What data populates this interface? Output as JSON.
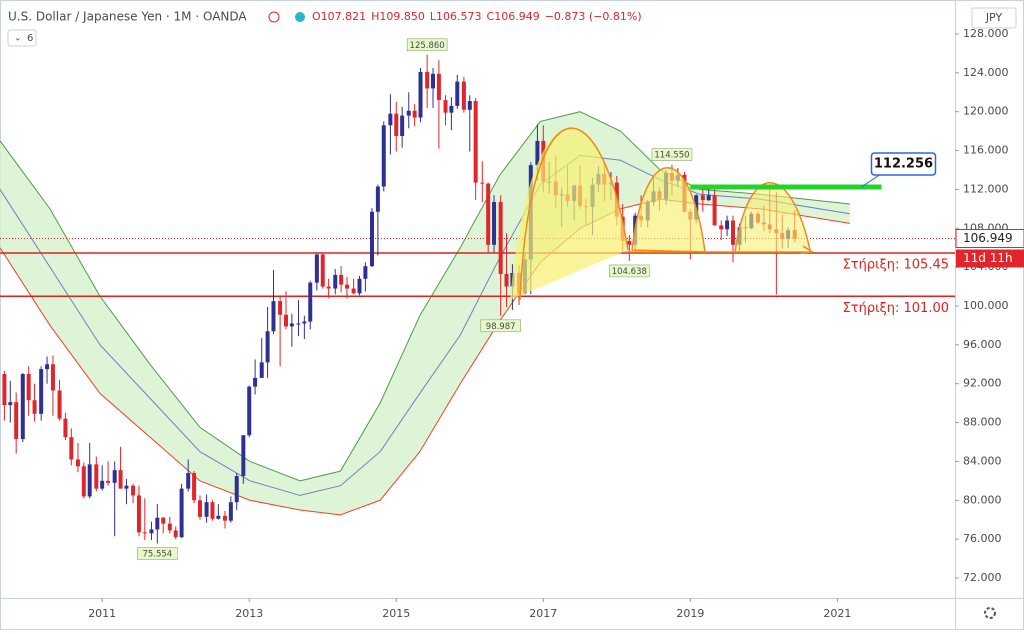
{
  "header": {
    "symbol": "U.S. Dollar / Japanese Yen · 1M · OANDA",
    "readout": [
      "O107.821",
      "H109.850",
      "L106.573",
      "C106.949",
      "−0.873 (−0.81%)"
    ],
    "indicator_count": "6",
    "currency": "JPY"
  },
  "chart_data": {
    "type": "candlestick",
    "up_color": "#2e3192",
    "down_color": "#e0262a",
    "xlim": [
      2009.61,
      2022.6
    ],
    "xticks": [
      2011,
      2013,
      2015,
      2017,
      2019,
      2021
    ],
    "ylim": [
      69.94,
      131.5
    ],
    "yticks": [
      {
        "value": 72,
        "label": "72.000"
      },
      {
        "value": 76,
        "label": "76.000"
      },
      {
        "value": 80,
        "label": "80.000"
      },
      {
        "value": 84,
        "label": "84.000"
      },
      {
        "value": 88,
        "label": "88.000"
      },
      {
        "value": 92,
        "label": "92.000"
      },
      {
        "value": 96,
        "label": "96.000"
      },
      {
        "value": 100,
        "label": "100.000"
      },
      {
        "value": 104,
        "label": "104.000"
      },
      {
        "value": 108,
        "label": "108.000"
      },
      {
        "value": 112,
        "label": "112.000"
      },
      {
        "value": 116,
        "label": "116.000"
      },
      {
        "value": 120,
        "label": "120.000"
      },
      {
        "value": 124,
        "label": "124.000"
      },
      {
        "value": 128,
        "label": "128.000"
      }
    ],
    "x": [
      2009.67,
      2009.75,
      2009.83,
      2009.92,
      2010.0,
      2010.08,
      2010.17,
      2010.25,
      2010.33,
      2010.42,
      2010.5,
      2010.58,
      2010.67,
      2010.75,
      2010.83,
      2010.92,
      2011.0,
      2011.08,
      2011.17,
      2011.25,
      2011.33,
      2011.42,
      2011.5,
      2011.58,
      2011.67,
      2011.75,
      2011.83,
      2011.92,
      2012.0,
      2012.08,
      2012.17,
      2012.25,
      2012.33,
      2012.42,
      2012.5,
      2012.58,
      2012.67,
      2012.75,
      2012.83,
      2012.92,
      2013.0,
      2013.08,
      2013.17,
      2013.25,
      2013.33,
      2013.42,
      2013.5,
      2013.58,
      2013.67,
      2013.75,
      2013.83,
      2013.92,
      2014.0,
      2014.08,
      2014.17,
      2014.25,
      2014.33,
      2014.42,
      2014.5,
      2014.58,
      2014.67,
      2014.75,
      2014.83,
      2014.92,
      2015.0,
      2015.08,
      2015.17,
      2015.25,
      2015.33,
      2015.42,
      2015.5,
      2015.58,
      2015.67,
      2015.75,
      2015.83,
      2015.92,
      2016.0,
      2016.08,
      2016.17,
      2016.25,
      2016.33,
      2016.42,
      2016.5,
      2016.58,
      2016.67,
      2016.75,
      2016.83,
      2016.92,
      2017.0,
      2017.08,
      2017.17,
      2017.25,
      2017.33,
      2017.42,
      2017.5,
      2017.58,
      2017.67,
      2017.75,
      2017.83,
      2017.92,
      2018.0,
      2018.08,
      2018.17,
      2018.25,
      2018.33,
      2018.42,
      2018.5,
      2018.58,
      2018.67,
      2018.75,
      2018.83,
      2018.92,
      2019.0,
      2019.08,
      2019.17,
      2019.25,
      2019.33,
      2019.42,
      2019.5,
      2019.58,
      2019.67,
      2019.75,
      2019.83,
      2019.92,
      2020.0,
      2020.08,
      2020.17,
      2020.25,
      2020.33,
      2020.42
    ],
    "ohlc": [
      [
        93.0,
        93.3,
        88.2,
        89.8
      ],
      [
        89.8,
        92.3,
        88.0,
        90.1
      ],
      [
        90.1,
        91.1,
        84.8,
        86.3
      ],
      [
        86.3,
        93.1,
        86.0,
        93.0
      ],
      [
        93.0,
        93.8,
        88.7,
        90.3
      ],
      [
        90.3,
        92.0,
        88.1,
        88.9
      ],
      [
        88.9,
        93.8,
        88.2,
        93.5
      ],
      [
        93.5,
        94.8,
        92.0,
        94.0
      ],
      [
        94.0,
        94.9,
        88.7,
        91.3
      ],
      [
        91.3,
        92.4,
        88.2,
        88.4
      ],
      [
        88.4,
        89.0,
        86.2,
        86.5
      ],
      [
        86.5,
        87.4,
        83.6,
        84.2
      ],
      [
        84.2,
        85.9,
        82.9,
        83.5
      ],
      [
        83.5,
        83.9,
        80.2,
        80.4
      ],
      [
        80.4,
        85.9,
        80.2,
        83.7
      ],
      [
        83.7,
        84.5,
        80.9,
        81.2
      ],
      [
        81.2,
        83.6,
        81.0,
        82.0
      ],
      [
        82.0,
        84.0,
        81.5,
        81.8
      ],
      [
        81.8,
        84.0,
        76.3,
        83.1
      ],
      [
        83.1,
        85.5,
        81.2,
        81.2
      ],
      [
        81.2,
        82.2,
        79.6,
        81.5
      ],
      [
        81.5,
        81.7,
        79.7,
        80.5
      ],
      [
        80.5,
        81.5,
        76.3,
        76.7
      ],
      [
        76.7,
        80.2,
        75.9,
        76.6
      ],
      [
        76.6,
        77.8,
        75.9,
        77.0
      ],
      [
        77.0,
        79.6,
        75.554,
        78.2
      ],
      [
        78.2,
        78.3,
        76.6,
        77.6
      ],
      [
        77.6,
        78.3,
        76.6,
        76.9
      ],
      [
        76.9,
        77.3,
        76.0,
        76.2
      ],
      [
        76.2,
        81.7,
        76.1,
        81.2
      ],
      [
        81.2,
        84.2,
        80.9,
        82.8
      ],
      [
        82.8,
        83.0,
        79.7,
        80.0
      ],
      [
        80.0,
        80.5,
        78.0,
        78.3
      ],
      [
        78.3,
        80.6,
        77.7,
        79.8
      ],
      [
        79.8,
        80.0,
        77.9,
        78.1
      ],
      [
        78.1,
        79.6,
        78.0,
        78.4
      ],
      [
        78.4,
        78.9,
        77.1,
        77.9
      ],
      [
        77.9,
        80.4,
        77.7,
        79.8
      ],
      [
        79.8,
        82.8,
        79.0,
        82.5
      ],
      [
        82.5,
        86.7,
        81.7,
        86.7
      ],
      [
        86.7,
        91.8,
        86.5,
        91.7
      ],
      [
        91.7,
        94.5,
        90.9,
        92.6
      ],
      [
        92.6,
        96.7,
        92.6,
        94.2
      ],
      [
        94.2,
        99.9,
        92.6,
        97.4
      ],
      [
        97.4,
        103.7,
        97.1,
        100.5
      ],
      [
        100.5,
        101.0,
        93.8,
        99.1
      ],
      [
        99.1,
        101.5,
        97.6,
        97.9
      ],
      [
        97.9,
        99.2,
        95.8,
        98.2
      ],
      [
        98.2,
        100.6,
        96.9,
        98.2
      ],
      [
        98.2,
        99.0,
        96.6,
        98.4
      ],
      [
        98.4,
        102.6,
        97.6,
        102.4
      ],
      [
        102.4,
        105.4,
        101.6,
        105.3
      ],
      [
        105.3,
        105.4,
        101.8,
        102.0
      ],
      [
        102.0,
        102.8,
        100.8,
        101.8
      ],
      [
        101.8,
        103.8,
        101.2,
        103.2
      ],
      [
        103.2,
        104.1,
        101.4,
        102.2
      ],
      [
        102.2,
        103.0,
        100.8,
        101.8
      ],
      [
        101.8,
        102.8,
        101.2,
        101.3
      ],
      [
        101.3,
        103.1,
        101.1,
        102.8
      ],
      [
        102.8,
        104.5,
        101.5,
        104.1
      ],
      [
        104.1,
        110.1,
        104.0,
        109.7
      ],
      [
        109.7,
        112.5,
        105.2,
        112.3
      ],
      [
        112.3,
        119.0,
        111.8,
        118.6
      ],
      [
        118.6,
        121.8,
        115.6,
        119.8
      ],
      [
        119.8,
        121.0,
        115.9,
        117.5
      ],
      [
        117.5,
        120.5,
        116.3,
        119.6
      ],
      [
        119.6,
        122.0,
        118.3,
        120.1
      ],
      [
        120.1,
        120.8,
        118.5,
        119.4
      ],
      [
        119.4,
        124.5,
        118.9,
        124.1
      ],
      [
        124.1,
        125.86,
        120.4,
        122.4
      ],
      [
        122.4,
        124.5,
        120.4,
        123.9
      ],
      [
        123.9,
        125.3,
        116.2,
        121.2
      ],
      [
        121.2,
        121.7,
        118.6,
        119.9
      ],
      [
        119.9,
        121.5,
        118.1,
        120.6
      ],
      [
        120.6,
        123.8,
        120.3,
        123.1
      ],
      [
        123.1,
        123.6,
        119.9,
        120.2
      ],
      [
        120.2,
        121.7,
        115.9,
        121.1
      ],
      [
        121.1,
        121.4,
        110.9,
        112.7
      ],
      [
        112.7,
        114.9,
        110.7,
        112.6
      ],
      [
        112.6,
        112.7,
        105.5,
        106.3
      ],
      [
        106.3,
        111.4,
        105.5,
        110.7
      ],
      [
        110.7,
        111.4,
        98.987,
        103.3
      ],
      [
        103.3,
        107.5,
        99.9,
        102.0
      ],
      [
        102.0,
        104.3,
        99.6,
        103.4
      ],
      [
        103.4,
        104.2,
        100.1,
        101.3
      ],
      [
        101.3,
        105.5,
        101.2,
        104.8
      ],
      [
        104.8,
        114.8,
        101.2,
        114.5
      ],
      [
        114.5,
        118.7,
        112.9,
        117.0
      ],
      [
        117.0,
        118.6,
        111.7,
        112.8
      ],
      [
        112.8,
        114.9,
        111.6,
        112.8
      ],
      [
        112.8,
        115.5,
        110.1,
        111.4
      ],
      [
        111.4,
        112.2,
        108.1,
        111.5
      ],
      [
        111.5,
        114.4,
        110.2,
        110.8
      ],
      [
        110.8,
        112.5,
        108.8,
        112.4
      ],
      [
        112.4,
        114.5,
        110.0,
        110.3
      ],
      [
        110.3,
        111.0,
        108.3,
        110.2
      ],
      [
        110.2,
        113.2,
        107.3,
        112.5
      ],
      [
        112.5,
        114.4,
        111.7,
        113.6
      ],
      [
        113.6,
        114.7,
        110.8,
        112.5
      ],
      [
        112.5,
        113.8,
        110.9,
        112.7
      ],
      [
        112.7,
        113.4,
        108.3,
        109.2
      ],
      [
        109.2,
        110.5,
        105.6,
        106.7
      ],
      [
        106.7,
        107.3,
        104.638,
        106.3
      ],
      [
        106.3,
        109.6,
        105.7,
        109.3
      ],
      [
        109.3,
        111.4,
        108.1,
        108.8
      ],
      [
        108.8,
        110.9,
        108.1,
        110.7
      ],
      [
        110.7,
        113.2,
        110.3,
        111.8
      ],
      [
        111.8,
        112.2,
        109.8,
        111.0
      ],
      [
        111.0,
        114.0,
        110.4,
        113.7
      ],
      [
        113.7,
        114.55,
        111.4,
        112.9
      ],
      [
        112.9,
        114.2,
        112.3,
        113.5
      ],
      [
        113.5,
        113.8,
        109.6,
        109.7
      ],
      [
        109.7,
        110.0,
        104.8,
        108.9
      ],
      [
        108.9,
        111.5,
        108.5,
        111.4
      ],
      [
        111.4,
        112.1,
        109.7,
        110.9
      ],
      [
        110.9,
        112.4,
        110.8,
        111.4
      ],
      [
        111.4,
        112.0,
        108.3,
        108.3
      ],
      [
        108.3,
        108.8,
        106.8,
        107.9
      ],
      [
        107.9,
        109.3,
        107.2,
        108.8
      ],
      [
        108.8,
        109.3,
        104.5,
        106.3
      ],
      [
        106.3,
        108.5,
        105.7,
        108.1
      ],
      [
        108.1,
        109.3,
        106.5,
        108.0
      ],
      [
        108.0,
        109.7,
        107.9,
        109.5
      ],
      [
        109.5,
        109.7,
        108.4,
        108.6
      ],
      [
        108.6,
        110.3,
        107.7,
        108.4
      ],
      [
        108.4,
        112.2,
        107.5,
        107.9
      ],
      [
        107.9,
        111.7,
        101.18,
        107.5
      ],
      [
        107.5,
        109.4,
        105.9,
        106.9
      ],
      [
        106.9,
        108.1,
        105.99,
        107.8
      ],
      [
        107.821,
        109.85,
        106.573,
        106.949
      ]
    ],
    "overlay_x": [
      2009.61,
      2010.29,
      2010.97,
      2011.65,
      2012.33,
      2013.01,
      2013.69,
      2014.24,
      2014.78,
      2015.32,
      2015.87,
      2016.41,
      2016.96,
      2017.5,
      2018.05,
      2018.59,
      2019.13,
      2019.95,
      2021.17
    ],
    "overlays": [
      {
        "color": "#4f9a4a",
        "values": [
          117,
          110,
          101,
          94,
          87.5,
          84,
          82,
          83,
          90,
          99,
          106,
          113.5,
          119,
          120,
          118,
          114,
          112,
          111.5,
          110.5
        ]
      },
      {
        "color": "#6f7fbf",
        "values": [
          112,
          104,
          96,
          90.5,
          85,
          82,
          80.5,
          81.5,
          85,
          91,
          97,
          105,
          112.5,
          115.5,
          115,
          113,
          111.5,
          111,
          109.5
        ]
      },
      {
        "color": "#f0402a",
        "values": [
          106,
          98,
          91,
          86.5,
          82,
          80,
          79,
          78.5,
          80,
          85,
          92,
          98.5,
          104.5,
          108,
          110,
          111,
          110.5,
          110,
          108.5
        ]
      }
    ],
    "band_fill": "#d4f2cc",
    "price_labels": [
      {
        "x": 2015.42,
        "value": 125.86,
        "label": "125.860",
        "position": "above"
      },
      {
        "x": 2011.75,
        "value": 75.554,
        "label": "75.554",
        "position": "below"
      },
      {
        "x": 2016.42,
        "value": 98.987,
        "label": "98.987",
        "position": "below"
      },
      {
        "x": 2018.17,
        "value": 104.638,
        "label": "104.638",
        "position": "below"
      },
      {
        "x": 2018.75,
        "value": 114.55,
        "label": "114.550",
        "position": "above"
      }
    ],
    "hlines": [
      {
        "value": 105.45,
        "label": "Στήριξη: 105.45",
        "color": "#e0211d"
      },
      {
        "value": 101.0,
        "label": "Στήριξη: 101.00",
        "color": "#e0211d"
      }
    ],
    "target_line": {
      "value": 112.256,
      "label": "112.256",
      "x": [
        2019.0,
        2021.6
      ],
      "color": "#22d42a"
    },
    "last_price": {
      "value": 106.949,
      "label": "106.949",
      "countdown": "11d 11h",
      "color": "#e0262a"
    }
  }
}
